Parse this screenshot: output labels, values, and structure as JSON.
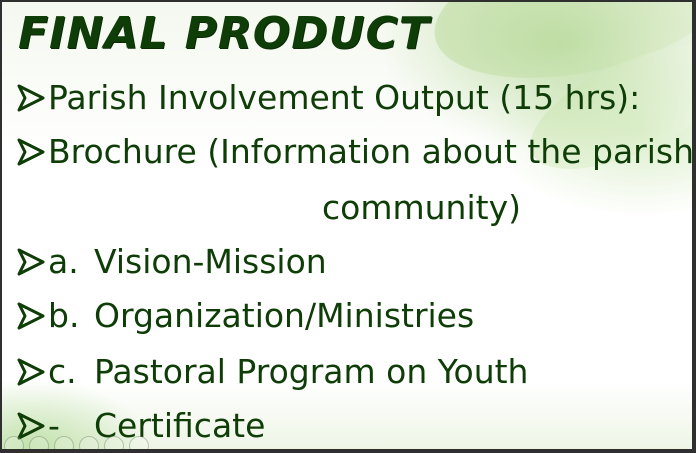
{
  "slide": {
    "title": "FINAL PRODUCT",
    "items": [
      {
        "marker": "",
        "text": "Parish Involvement Output (15 hrs):"
      },
      {
        "marker": "",
        "text": "Brochure (Information about the parish"
      },
      {
        "marker": "",
        "text": "community)"
      },
      {
        "marker": "a.",
        "text": "Vision-Mission"
      },
      {
        "marker": "b.",
        "text": "Organization/Ministries"
      },
      {
        "marker": "c.",
        "text": "Pastoral Program on Youth"
      },
      {
        "marker": "-",
        "text": "Certificate"
      }
    ]
  },
  "colors": {
    "text": "#0f3d07",
    "background": "#ffffff",
    "accent": "#9fcb72"
  },
  "icons": {
    "bullet": "arrow-bullet-icon",
    "toolbar": [
      "previous-icon",
      "pointer-icon",
      "pen-icon",
      "slides-icon",
      "zoom-icon",
      "more-icon"
    ]
  }
}
